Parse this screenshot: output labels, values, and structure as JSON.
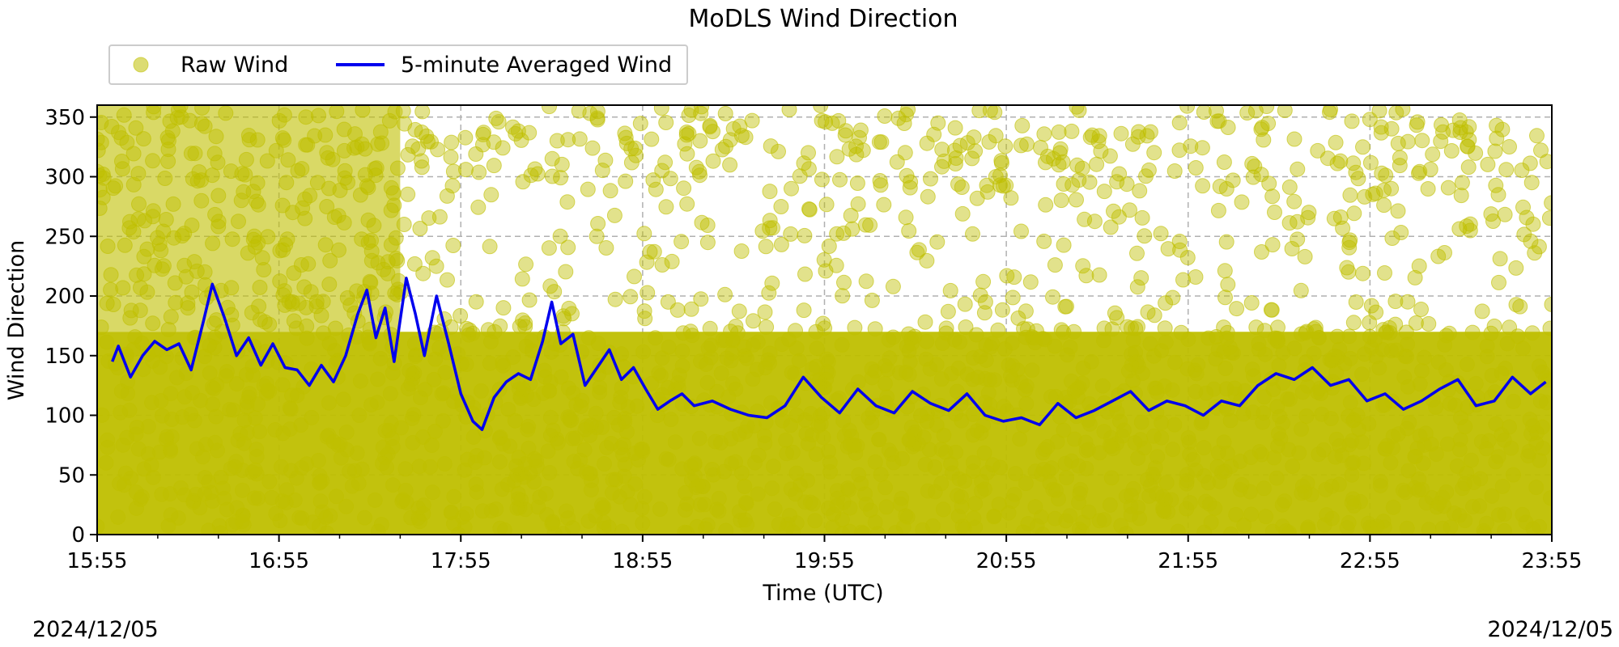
{
  "chart_data": {
    "type": "scatter",
    "title": "MoDLS Wind Direction",
    "xlabel": "Time (UTC)",
    "ylabel": "Wind Direction",
    "x_range": [
      "15:55",
      "23:55"
    ],
    "ylim": [
      0,
      360
    ],
    "x_ticks": [
      "15:55",
      "16:55",
      "17:55",
      "18:55",
      "19:55",
      "20:55",
      "21:55",
      "22:55",
      "23:55"
    ],
    "y_ticks": [
      0,
      50,
      100,
      150,
      200,
      250,
      300,
      350
    ],
    "grid": true,
    "legend_position": "top-left, above plot",
    "series": [
      {
        "name": "Raw Wind",
        "type": "scatter",
        "color": "#bfbf00",
        "opacity": 0.5,
        "description_values": "dense points spanning 0-360 throughout; concentrated 0-180 after 18:15"
      },
      {
        "name": "5-minute Averaged Wind",
        "type": "line",
        "color": "#0000ee",
        "points": [
          [
            "16:00",
            145
          ],
          [
            "16:02",
            158
          ],
          [
            "16:06",
            132
          ],
          [
            "16:10",
            150
          ],
          [
            "16:14",
            162
          ],
          [
            "16:18",
            155
          ],
          [
            "16:22",
            160
          ],
          [
            "16:26",
            138
          ],
          [
            "16:30",
            178
          ],
          [
            "16:33",
            210
          ],
          [
            "16:37",
            182
          ],
          [
            "16:41",
            150
          ],
          [
            "16:45",
            165
          ],
          [
            "16:49",
            142
          ],
          [
            "16:53",
            160
          ],
          [
            "16:57",
            140
          ],
          [
            "17:01",
            138
          ],
          [
            "17:05",
            125
          ],
          [
            "17:09",
            142
          ],
          [
            "17:13",
            128
          ],
          [
            "17:17",
            150
          ],
          [
            "17:21",
            185
          ],
          [
            "17:24",
            205
          ],
          [
            "17:27",
            165
          ],
          [
            "17:30",
            190
          ],
          [
            "17:33",
            145
          ],
          [
            "17:37",
            215
          ],
          [
            "17:40",
            185
          ],
          [
            "17:43",
            150
          ],
          [
            "17:47",
            200
          ],
          [
            "17:51",
            160
          ],
          [
            "17:55",
            118
          ],
          [
            "17:59",
            95
          ],
          [
            "18:02",
            88
          ],
          [
            "18:06",
            115
          ],
          [
            "18:10",
            128
          ],
          [
            "18:14",
            135
          ],
          [
            "18:18",
            130
          ],
          [
            "18:22",
            162
          ],
          [
            "18:25",
            195
          ],
          [
            "18:28",
            160
          ],
          [
            "18:32",
            168
          ],
          [
            "18:36",
            125
          ],
          [
            "18:40",
            140
          ],
          [
            "18:44",
            155
          ],
          [
            "18:48",
            130
          ],
          [
            "18:52",
            140
          ],
          [
            "18:56",
            122
          ],
          [
            "19:00",
            105
          ],
          [
            "19:04",
            112
          ],
          [
            "19:08",
            118
          ],
          [
            "19:12",
            108
          ],
          [
            "19:18",
            112
          ],
          [
            "19:24",
            105
          ],
          [
            "19:30",
            100
          ],
          [
            "19:36",
            98
          ],
          [
            "19:42",
            108
          ],
          [
            "19:48",
            132
          ],
          [
            "19:54",
            115
          ],
          [
            "20:00",
            102
          ],
          [
            "20:06",
            122
          ],
          [
            "20:12",
            108
          ],
          [
            "20:18",
            102
          ],
          [
            "20:24",
            120
          ],
          [
            "20:30",
            110
          ],
          [
            "20:36",
            104
          ],
          [
            "20:42",
            118
          ],
          [
            "20:48",
            100
          ],
          [
            "20:54",
            95
          ],
          [
            "21:00",
            98
          ],
          [
            "21:06",
            92
          ],
          [
            "21:12",
            110
          ],
          [
            "21:18",
            98
          ],
          [
            "21:24",
            104
          ],
          [
            "21:30",
            112
          ],
          [
            "21:36",
            120
          ],
          [
            "21:42",
            104
          ],
          [
            "21:48",
            112
          ],
          [
            "21:54",
            108
          ],
          [
            "22:00",
            100
          ],
          [
            "22:06",
            112
          ],
          [
            "22:12",
            108
          ],
          [
            "22:18",
            125
          ],
          [
            "22:24",
            135
          ],
          [
            "22:30",
            130
          ],
          [
            "22:36",
            140
          ],
          [
            "22:42",
            125
          ],
          [
            "22:48",
            130
          ],
          [
            "22:54",
            112
          ],
          [
            "23:00",
            118
          ],
          [
            "23:06",
            105
          ],
          [
            "23:12",
            112
          ],
          [
            "23:18",
            122
          ],
          [
            "23:24",
            130
          ],
          [
            "23:30",
            108
          ],
          [
            "23:36",
            112
          ],
          [
            "23:42",
            132
          ],
          [
            "23:48",
            118
          ],
          [
            "23:53",
            128
          ]
        ]
      }
    ],
    "date_left": "2024/12/05",
    "date_right": "2024/12/05"
  }
}
